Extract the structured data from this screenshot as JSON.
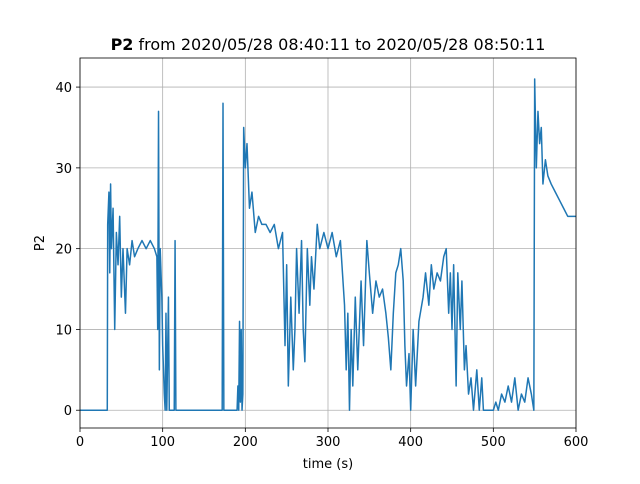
{
  "chart_data": {
    "type": "line",
    "title": {
      "bold": "P2",
      "text": "from 2020/05/28 08:40:11 to 2020/05/28 08:50:11"
    },
    "xlabel": "time (s)",
    "ylabel": "P2",
    "color": "#1f77b4",
    "x": [
      0,
      33,
      33.5,
      35,
      36,
      37,
      38,
      40,
      42,
      44,
      46,
      48,
      50,
      52,
      55,
      57,
      60,
      63,
      66,
      70,
      75,
      80,
      85,
      90,
      93,
      94,
      95,
      96,
      97,
      99,
      100,
      102,
      103,
      104,
      105,
      107,
      108,
      110,
      114,
      115,
      116,
      120,
      172,
      173,
      174,
      190,
      191,
      192,
      193,
      194,
      195,
      196,
      197,
      198,
      200,
      202,
      205,
      208,
      212,
      216,
      220,
      225,
      230,
      235,
      240,
      245,
      248,
      250,
      252,
      255,
      258,
      260,
      262,
      265,
      268,
      270,
      272,
      275,
      278,
      280,
      283,
      287,
      290,
      295,
      300,
      305,
      310,
      315,
      320,
      322,
      324,
      326,
      328,
      330,
      333,
      336,
      340,
      343,
      347,
      350,
      354,
      358,
      362,
      366,
      370,
      373,
      376,
      379,
      382,
      385,
      388,
      391,
      393,
      395,
      398,
      400,
      403,
      406,
      410,
      415,
      418,
      422,
      425,
      428,
      432,
      436,
      440,
      443,
      446,
      448,
      450,
      452,
      455,
      457,
      460,
      462,
      465,
      467,
      470,
      473,
      476,
      480,
      483,
      486,
      488,
      492,
      500,
      503,
      506,
      510,
      514,
      518,
      522,
      526,
      530,
      534,
      538,
      542,
      546,
      549,
      550,
      552,
      554,
      556,
      558,
      560,
      563,
      566,
      570,
      575,
      580,
      585,
      590,
      595,
      600
    ],
    "values": [
      0,
      0,
      23,
      27,
      17,
      28,
      20,
      25,
      10,
      22,
      18,
      24,
      14,
      20,
      12,
      20,
      18,
      21,
      19,
      20,
      21,
      20,
      21,
      20,
      19,
      10,
      37,
      5,
      20,
      14,
      8,
      2,
      0,
      12,
      0,
      14,
      0,
      0,
      0,
      21,
      0,
      0,
      0,
      38,
      0,
      0,
      3,
      0,
      11,
      1,
      10,
      0,
      2,
      35,
      30,
      33,
      25,
      27,
      22,
      24,
      23,
      23,
      22,
      23,
      20,
      22,
      8,
      18,
      3,
      14,
      5,
      10,
      20,
      12,
      21,
      10,
      6,
      20,
      13,
      19,
      15,
      23,
      20,
      22,
      20,
      22,
      19,
      21,
      13,
      5,
      12,
      0,
      10,
      3,
      14,
      5,
      16,
      8,
      21,
      17,
      12,
      16,
      14,
      15,
      12,
      9,
      5,
      12,
      17,
      18,
      20,
      16,
      8,
      3,
      7,
      0,
      10,
      3,
      11,
      14,
      17,
      13,
      18,
      15,
      17,
      16,
      19,
      20,
      12,
      17,
      10,
      18,
      3,
      17,
      10,
      16,
      5,
      8,
      2,
      4,
      0,
      5,
      0,
      4,
      0,
      0,
      0,
      1,
      0,
      2,
      1,
      3,
      1,
      4,
      0,
      2,
      1,
      4,
      2,
      0,
      41,
      30,
      37,
      33,
      35,
      28,
      31,
      29,
      28,
      27,
      26,
      25,
      24,
      24,
      24
    ],
    "xlim": [
      0,
      600
    ],
    "ylim": [
      -2.2,
      43.6
    ],
    "xticks": [
      0,
      100,
      200,
      300,
      400,
      500,
      600
    ],
    "yticks": [
      0,
      10,
      20,
      30,
      40
    ],
    "grid": true
  }
}
